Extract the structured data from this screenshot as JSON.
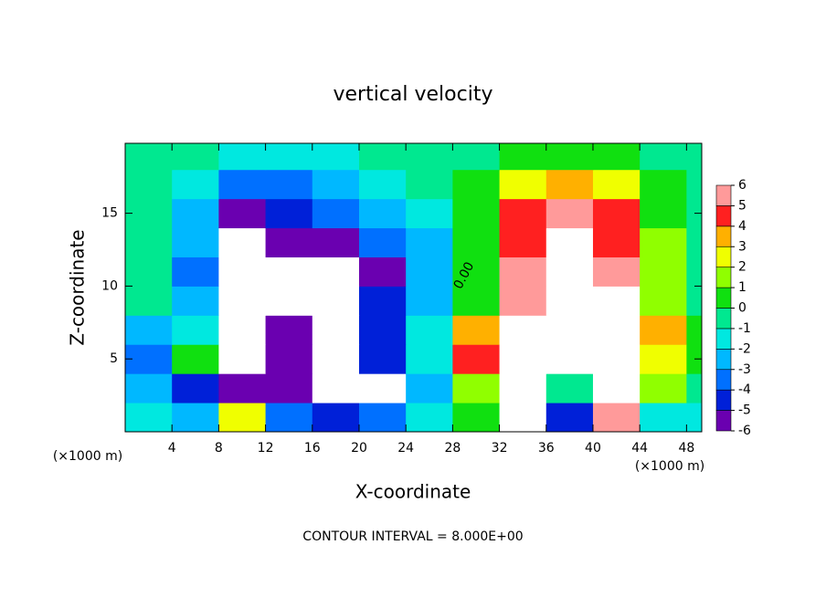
{
  "chart_data": {
    "type": "heatmap",
    "title": "vertical velocity",
    "x_label": "X-coordinate",
    "y_label": "Z-coordinate",
    "x_unit": "(×1000 m)",
    "y_unit": "(×1000 m)",
    "footer": "CONTOUR INTERVAL = 8.000E+00",
    "annotation": "0.00",
    "x": [
      2,
      6,
      10,
      14,
      18,
      22,
      26,
      30,
      34,
      38,
      42,
      46,
      50
    ],
    "z": [
      1,
      3,
      5,
      7,
      9,
      11,
      13,
      15,
      17,
      19
    ],
    "values": [
      [
        -1,
        -2,
        3,
        -3,
        -4,
        -3,
        -1,
        0.5,
        7,
        -4,
        6,
        -1,
        -1
      ],
      [
        -2,
        -4,
        -5,
        -5,
        -7,
        -7,
        -2,
        2,
        7,
        0,
        7,
        2,
        0
      ],
      [
        -3,
        1,
        -7,
        -6,
        -7,
        -4,
        -1,
        5,
        7,
        8,
        7,
        3,
        1
      ],
      [
        -2,
        -1,
        -8,
        -6,
        -7,
        -4,
        -1,
        4,
        7,
        9,
        7,
        4,
        1
      ],
      [
        0,
        -2,
        -9,
        -7,
        -8,
        -4,
        -2,
        1,
        6,
        10,
        7,
        2,
        0
      ],
      [
        0,
        -3,
        -8,
        -8,
        -9,
        -5,
        -2,
        1,
        6,
        10,
        6,
        2,
        0
      ],
      [
        0,
        -2,
        -7,
        -5,
        -6,
        -3,
        -2,
        1,
        5,
        9,
        5,
        2,
        0
      ],
      [
        0,
        -2,
        -5,
        -4,
        -3,
        -2,
        -1,
        1,
        5,
        6,
        5,
        1,
        0
      ],
      [
        0,
        -1,
        -3,
        -3,
        -2,
        -1,
        0,
        1,
        3,
        4,
        3,
        1,
        0
      ],
      [
        0,
        0,
        -1,
        -1,
        -1,
        0,
        0,
        0,
        1,
        1,
        1,
        0,
        0
      ]
    ],
    "xlim": [
      0,
      49.3
    ],
    "xticks": [
      4,
      8,
      12,
      16,
      20,
      24,
      28,
      32,
      36,
      40,
      44,
      48
    ],
    "ylim": [
      0,
      19.8
    ],
    "yticks": [
      5,
      10,
      15
    ],
    "clim": [
      -6,
      6
    ],
    "cticks": [
      -6,
      -5,
      -4,
      -3,
      -2,
      -1,
      0,
      1,
      2,
      3,
      4,
      5,
      6
    ],
    "colors": [
      "#6a00b0",
      "#0020d8",
      "#0070ff",
      "#00b8ff",
      "#00e8e0",
      "#00e890",
      "#10e010",
      "#90ff00",
      "#f0ff00",
      "#ffb000",
      "#ff2020",
      "#ff9a9a"
    ],
    "out_of_range_color": "#ffffff"
  }
}
